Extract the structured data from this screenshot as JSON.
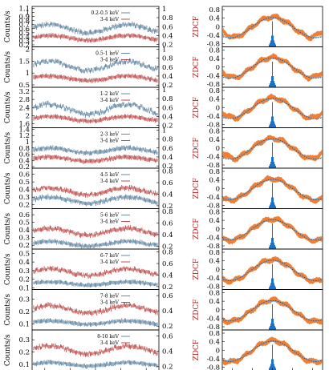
{
  "colors": {
    "blue": "#3d6b8f",
    "red": "#b22222",
    "orange": "#f0782a",
    "lightblue": "#6aa8e0",
    "peak": "#1a73c9"
  },
  "chart_data": [
    {
      "type": "line",
      "panel": "left light curves",
      "xlabel": "",
      "ylabel": "Counts/s",
      "rows": [
        {
          "band": "0.2-0.5 keV",
          "ref": "3-4 keV",
          "yticks": [
            "1.1",
            "1",
            "0.9",
            "0.8",
            "0.7",
            "0.6",
            "0.5",
            "0.4",
            "0.3",
            "0.2"
          ],
          "rticks": [
            "1",
            "0.8",
            "0.6",
            "0.4",
            "0.2"
          ],
          "ylim": [
            0.15,
            1.15
          ],
          "rlim": [
            0.15,
            1.05
          ],
          "band_level": 0.6,
          "ref_level": 0.35,
          "band_amp": 0.1,
          "ref_amp": 0.05
        },
        {
          "band": "0.5-1 keV",
          "ref": "3-4 keV",
          "yticks": [
            "2",
            "1.5",
            "1",
            "0.5"
          ],
          "rticks": [
            "1",
            "0.8",
            "0.6",
            "0.4",
            "0.2"
          ],
          "ylim": [
            0.4,
            2.1
          ],
          "rlim": [
            0.15,
            1.05
          ],
          "band_level": 1.3,
          "ref_level": 0.35,
          "band_amp": 0.18,
          "ref_amp": 0.05
        },
        {
          "band": "1-2 keV",
          "ref": "3-4 keV",
          "yticks": [
            "3.2",
            "2.8",
            "2.4",
            "2",
            "1.6"
          ],
          "rticks": [
            "1",
            "0.8",
            "0.6",
            "0.4",
            "0.2"
          ],
          "ylim": [
            1.4,
            3.4
          ],
          "rlim": [
            0.15,
            1.05
          ],
          "band_level": 2.3,
          "ref_level": 0.35,
          "band_amp": 0.25,
          "ref_amp": 0.05
        },
        {
          "band": "2-3 keV",
          "ref": "3-4 keV",
          "yticks": [
            "1.4",
            "1.2",
            "1",
            "0.8",
            "0.6",
            "0.4",
            "0.2"
          ],
          "rticks": [
            "1",
            "0.8",
            "0.6",
            "0.4",
            "0.2"
          ],
          "ylim": [
            0.15,
            1.45
          ],
          "rlim": [
            0.15,
            1.05
          ],
          "band_level": 0.72,
          "ref_level": 0.35,
          "band_amp": 0.08,
          "ref_amp": 0.05
        },
        {
          "band": "4-5 keV",
          "ref": "3-4 keV",
          "yticks": [
            "0.6",
            "0.5",
            "0.4",
            "0.3",
            "0.2"
          ],
          "rticks": [
            "0.8",
            "0.6",
            "0.4",
            "0.2"
          ],
          "ylim": [
            0.15,
            0.68
          ],
          "rlim": [
            0.15,
            0.85
          ],
          "band_level": 0.26,
          "ref_level": 0.45,
          "band_amp": 0.04,
          "ref_amp": 0.06
        },
        {
          "band": "5-6 keV",
          "ref": "3-4 keV",
          "yticks": [
            "0.6",
            "0.5",
            "0.4",
            "0.3",
            "0.2"
          ],
          "rticks": [
            "0.8",
            "0.6",
            "0.4",
            "0.2"
          ],
          "ylim": [
            0.15,
            0.68
          ],
          "rlim": [
            0.15,
            0.85
          ],
          "band_level": 0.22,
          "ref_level": 0.45,
          "band_amp": 0.03,
          "ref_amp": 0.06
        },
        {
          "band": "6-7 keV",
          "ref": "3-4 keV",
          "yticks": [
            "0.5",
            "0.4",
            "0.3",
            "0.2",
            "0.1"
          ],
          "rticks": [
            "0.8",
            "0.6",
            "0.4",
            "0.2"
          ],
          "ylim": [
            0.08,
            0.55
          ],
          "rlim": [
            0.15,
            0.85
          ],
          "band_level": 0.15,
          "ref_level": 0.45,
          "band_amp": 0.02,
          "ref_amp": 0.06
        },
        {
          "band": "7-8 keV",
          "ref": "3-4 keV",
          "yticks": [
            "0.3",
            "0.2",
            "0.1"
          ],
          "rticks": [
            "0.6",
            "0.4",
            "0.2"
          ],
          "ylim": [
            0.05,
            0.38
          ],
          "rlim": [
            0.15,
            0.68
          ],
          "band_level": 0.11,
          "ref_level": 0.42,
          "band_amp": 0.015,
          "ref_amp": 0.05
        },
        {
          "band": "8-10 keV",
          "ref": "3-4 keV",
          "yticks": [
            "0.3",
            "0.2",
            "0.1"
          ],
          "rticks": [
            "0.6",
            "0.4",
            "0.2"
          ],
          "ylim": [
            0.05,
            0.38
          ],
          "rlim": [
            0.15,
            0.68
          ],
          "band_level": 0.1,
          "ref_level": 0.42,
          "band_amp": 0.015,
          "ref_amp": 0.05
        }
      ]
    },
    {
      "type": "line",
      "panel": "right cross-correlation",
      "xlabel": "",
      "ylabel": "ZDCF",
      "yticks": [
        "0.8",
        "0.4",
        "0",
        "-0.4",
        "-0.8"
      ],
      "ylim": [
        -0.95,
        0.95
      ],
      "rows": 9
    }
  ]
}
